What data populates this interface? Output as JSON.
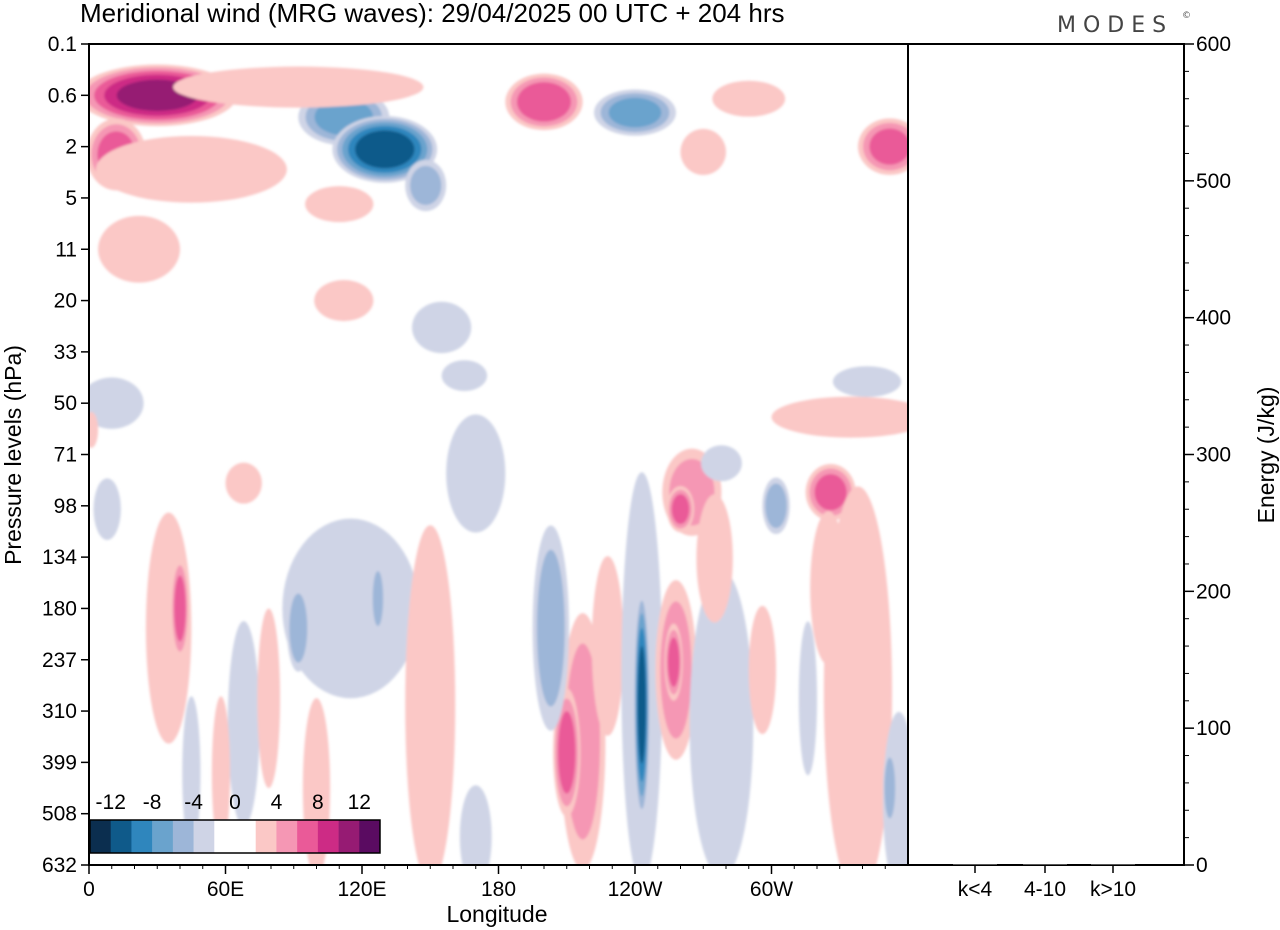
{
  "chart_data": {
    "type": "heatmap",
    "title": "Meridional wind (MRG waves):  29/04/2025  00 UTC  + 204 hrs",
    "brand": "MODES",
    "brand_mark": "©",
    "xlabel": "Longitude",
    "ylabel": "Pressure levels (hPa)",
    "x_ticks": [
      "0",
      "60E",
      "120E",
      "180",
      "120W",
      "60W"
    ],
    "x_range": [
      0,
      360
    ],
    "y_ticks": [
      "0.1",
      "0.6",
      "2",
      "5",
      "11",
      "20",
      "33",
      "50",
      "71",
      "98",
      "134",
      "180",
      "237",
      "310",
      "399",
      "508",
      "632"
    ],
    "colorbar": {
      "labels": [
        "-12",
        "-8",
        "-4",
        "0",
        "4",
        "8",
        "12"
      ],
      "colors": [
        "#0b2e4f",
        "#0f5a8a",
        "#2f86bd",
        "#6aa3cd",
        "#9db6d8",
        "#cfd4e6",
        "#ffffff",
        "#ffffff",
        "#fbc8c6",
        "#f597b4",
        "#ea5a98",
        "#cd2b85",
        "#961b73",
        "#5a0b61"
      ]
    },
    "energy_axis": {
      "ylabel": "Energy (J/kg)",
      "ticks": [
        "0",
        "100",
        "200",
        "300",
        "400",
        "500",
        "600"
      ],
      "range": [
        0,
        600
      ],
      "categories": [
        "k<4",
        "4-10",
        "k>10"
      ],
      "values": [
        0,
        0,
        0
      ]
    },
    "anomalies": [
      {
        "lon": 30,
        "level": 0.6,
        "w": 35,
        "h": 1.2,
        "v": 10
      },
      {
        "lon": 12,
        "level": 2.3,
        "w": 13,
        "h": 1.4,
        "v": 6
      },
      {
        "lon": 45,
        "level": 3.0,
        "w": 42,
        "h": 1.3,
        "v": 3.5
      },
      {
        "lon": 112,
        "level": 1.0,
        "w": 20,
        "h": 1.1,
        "v": -6
      },
      {
        "lon": 130,
        "level": 2.1,
        "w": 23,
        "h": 1.3,
        "v": -11
      },
      {
        "lon": 148,
        "level": 4.0,
        "w": 9,
        "h": 1.0,
        "v": -4
      },
      {
        "lon": 92,
        "level": 0.45,
        "w": 55,
        "h": 0.8,
        "v": 2.5
      },
      {
        "lon": 200,
        "level": 0.7,
        "w": 17,
        "h": 1.1,
        "v": 7
      },
      {
        "lon": 240,
        "level": 0.9,
        "w": 18,
        "h": 0.9,
        "v": -6
      },
      {
        "lon": 270,
        "level": 2.2,
        "w": 10,
        "h": 0.9,
        "v": 3
      },
      {
        "lon": 352,
        "level": 2.0,
        "w": 14,
        "h": 1.1,
        "v": 6
      },
      {
        "lon": 290,
        "level": 0.65,
        "w": 16,
        "h": 0.7,
        "v": 2.5
      },
      {
        "lon": 22,
        "level": 11,
        "w": 18,
        "h": 1.3,
        "v": 3
      },
      {
        "lon": 110,
        "level": 5.5,
        "w": 15,
        "h": 0.7,
        "v": 2.5
      },
      {
        "lon": 155,
        "level": 26,
        "w": 13,
        "h": 1.0,
        "v": -2.5
      },
      {
        "lon": 112,
        "level": 20,
        "w": 13,
        "h": 0.8,
        "v": 2.5
      },
      {
        "lon": 165,
        "level": 40,
        "w": 10,
        "h": 0.6,
        "v": -2.5
      },
      {
        "lon": 335,
        "level": 55,
        "w": 35,
        "h": 0.8,
        "v": 3
      },
      {
        "lon": 342,
        "level": 42,
        "w": 15,
        "h": 0.6,
        "v": -2.5
      },
      {
        "lon": 10,
        "level": 50,
        "w": 14,
        "h": 1.0,
        "v": -2.5
      },
      {
        "lon": 170,
        "level": 80,
        "w": 13,
        "h": 2.3,
        "v": -3
      },
      {
        "lon": 8,
        "level": 100,
        "w": 6,
        "h": 1.2,
        "v": -2.5
      },
      {
        "lon": 265,
        "level": 90,
        "w": 13,
        "h": 1.7,
        "v": 4
      },
      {
        "lon": 260,
        "level": 100,
        "w": 6,
        "h": 0.9,
        "v": 6
      },
      {
        "lon": 302,
        "level": 98,
        "w": 6,
        "h": 1.1,
        "v": -4.5
      },
      {
        "lon": 326,
        "level": 90,
        "w": 11,
        "h": 1.1,
        "v": 6
      },
      {
        "lon": 278,
        "level": 75,
        "w": 9,
        "h": 0.7,
        "v": -2.5
      },
      {
        "lon": 68,
        "level": 85,
        "w": 8,
        "h": 0.8,
        "v": 3
      },
      {
        "lon": 35,
        "level": 200,
        "w": 10,
        "h": 4.5,
        "v": 3.5
      },
      {
        "lon": 40,
        "level": 180,
        "w": 4,
        "h": 2.0,
        "v": 6
      },
      {
        "lon": 115,
        "level": 180,
        "w": 30,
        "h": 3.5,
        "v": -3
      },
      {
        "lon": 92,
        "level": 200,
        "w": 5,
        "h": 1.7,
        "v": -4.5
      },
      {
        "lon": 127,
        "level": 170,
        "w": 3,
        "h": 1.4,
        "v": -4
      },
      {
        "lon": 150,
        "level": 300,
        "w": 11,
        "h": 7.0,
        "v": 2.5
      },
      {
        "lon": 217,
        "level": 360,
        "w": 10,
        "h": 5.0,
        "v": 4
      },
      {
        "lon": 210,
        "level": 380,
        "w": 6,
        "h": 2.5,
        "v": 6
      },
      {
        "lon": 203,
        "level": 200,
        "w": 8,
        "h": 4.0,
        "v": -4
      },
      {
        "lon": 228,
        "level": 220,
        "w": 7,
        "h": 3.5,
        "v": 3
      },
      {
        "lon": 243,
        "level": 260,
        "w": 9,
        "h": 8.0,
        "v": -3
      },
      {
        "lon": 243,
        "level": 300,
        "w": 3.5,
        "h": 4.5,
        "v": -10
      },
      {
        "lon": 258,
        "level": 250,
        "w": 9,
        "h": 3.5,
        "v": 4
      },
      {
        "lon": 257,
        "level": 240,
        "w": 4,
        "h": 1.5,
        "v": 6
      },
      {
        "lon": 278,
        "level": 330,
        "w": 14,
        "h": 6.0,
        "v": -2.5
      },
      {
        "lon": 275,
        "level": 135,
        "w": 8,
        "h": 2.5,
        "v": 3
      },
      {
        "lon": 296,
        "level": 250,
        "w": 6,
        "h": 2.5,
        "v": 3
      },
      {
        "lon": 316,
        "level": 290,
        "w": 4,
        "h": 3.0,
        "v": -2.5
      },
      {
        "lon": 338,
        "level": 280,
        "w": 15,
        "h": 8.0,
        "v": 2.5
      },
      {
        "lon": 356,
        "level": 480,
        "w": 7,
        "h": 3.5,
        "v": -3
      },
      {
        "lon": 352,
        "level": 450,
        "w": 3,
        "h": 1.5,
        "v": -4.5
      },
      {
        "lon": 325,
        "level": 160,
        "w": 8,
        "h": 3.0,
        "v": 3
      },
      {
        "lon": 68,
        "level": 330,
        "w": 7,
        "h": 4.0,
        "v": -2.5
      },
      {
        "lon": 79,
        "level": 290,
        "w": 5,
        "h": 3.5,
        "v": 3
      },
      {
        "lon": 58,
        "level": 420,
        "w": 4,
        "h": 3.0,
        "v": 3
      },
      {
        "lon": 45,
        "level": 420,
        "w": 4,
        "h": 3.0,
        "v": -2.5
      },
      {
        "lon": 100,
        "level": 450,
        "w": 6,
        "h": 3.5,
        "v": 2.5
      },
      {
        "lon": 170,
        "level": 560,
        "w": 7,
        "h": 2.0,
        "v": -2.5
      },
      {
        "lon": 150,
        "level": 600,
        "w": 5,
        "h": 1.5,
        "v": 3
      },
      {
        "lon": 1,
        "level": 60,
        "w": 3,
        "h": 0.7,
        "v": 2.5
      }
    ]
  }
}
